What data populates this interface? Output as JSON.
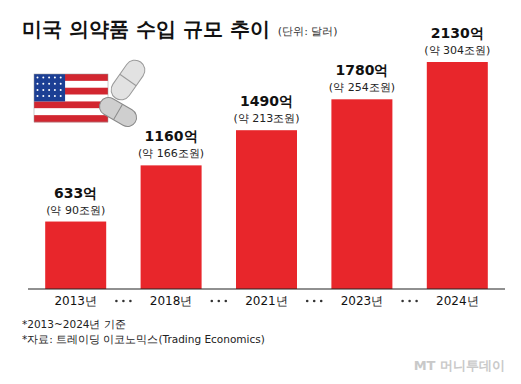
{
  "chart_data": {
    "type": "bar",
    "title": "미국 의약품 수입 규모 추이",
    "subtitle": "(단위: 달러)",
    "categories": [
      "2013년",
      "2018년",
      "2021년",
      "2023년",
      "2024년"
    ],
    "values": [
      633,
      1160,
      1490,
      1780,
      2130
    ],
    "value_labels": [
      "633억",
      "1160억",
      "1490억",
      "1780억",
      "2130억"
    ],
    "krw_labels": [
      "(약 90조원)",
      "(약 166조원)",
      "(약 213조원)",
      "(약 254조원)",
      "(약 304조원)"
    ],
    "color": "#e8262b",
    "ylim": [
      0,
      2130
    ],
    "data_labels": true,
    "tick_labels": "x",
    "grid": false,
    "notes": [
      "*2013~2024년 기준",
      "*자료: 트레이딩 이코노믹스(Trading Economics)"
    ],
    "brand": "MT 머니투데이"
  }
}
